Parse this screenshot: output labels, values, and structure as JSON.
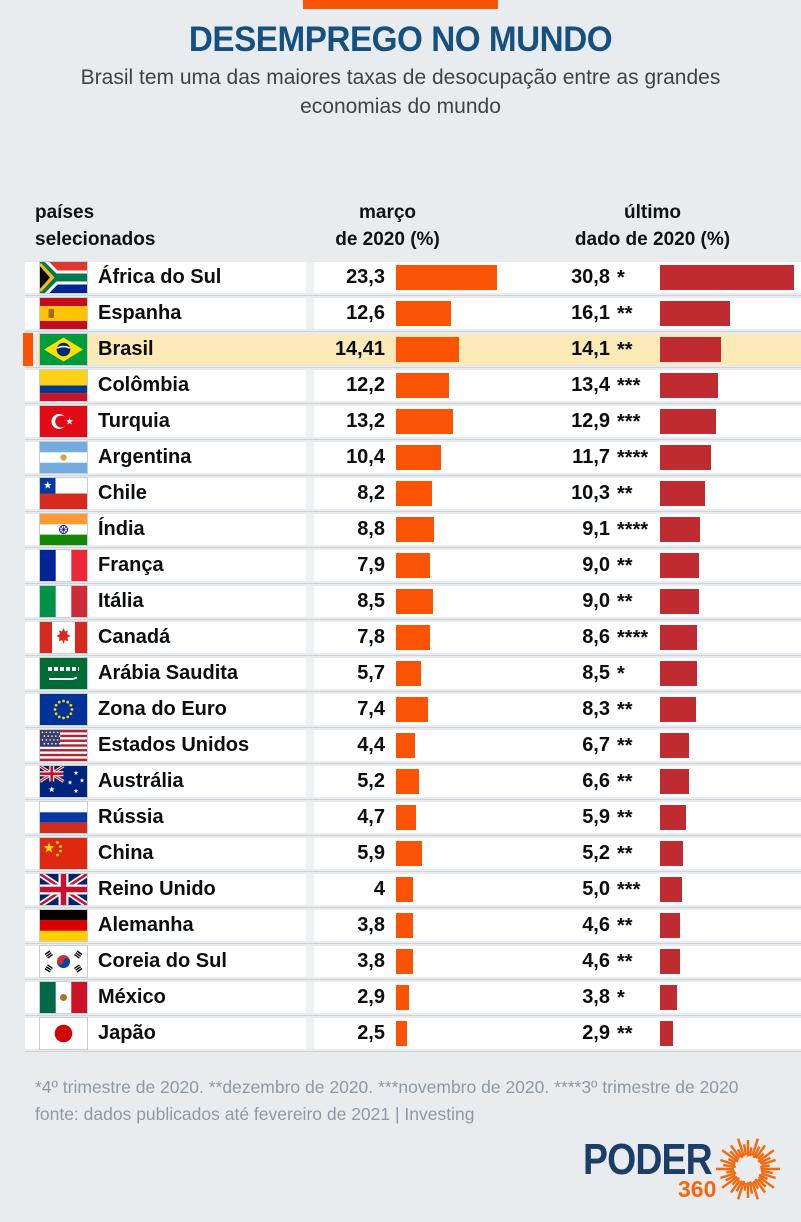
{
  "header": {
    "title": "DESEMPREGO NO MUNDO",
    "subtitle": "Brasil tem uma das maiores taxas de desocupação entre as grandes economias do mundo"
  },
  "columns": {
    "countries_l1": "países",
    "countries_l2": "selecionados",
    "march_l1": "março",
    "march_l2": "de 2020 (%)",
    "latest_l1": "último",
    "latest_l2": "dado de 2020 (%)"
  },
  "rows": [
    {
      "country": "África do Sul",
      "flag": "za",
      "marco": "23,3",
      "marco_value": 23.3,
      "ultimo": "30,8",
      "ultimo_note": "*",
      "ultimo_value": 30.8,
      "highlight": false
    },
    {
      "country": "Espanha",
      "flag": "es",
      "marco": "12,6",
      "marco_value": 12.6,
      "ultimo": "16,1",
      "ultimo_note": "**",
      "ultimo_value": 16.1,
      "highlight": false
    },
    {
      "country": "Brasil",
      "flag": "br",
      "marco": "14,41",
      "marco_value": 14.41,
      "ultimo": "14,1",
      "ultimo_note": "**",
      "ultimo_value": 14.1,
      "highlight": true
    },
    {
      "country": "Colômbia",
      "flag": "co",
      "marco": "12,2",
      "marco_value": 12.2,
      "ultimo": "13,4",
      "ultimo_note": "***",
      "ultimo_value": 13.4,
      "highlight": false
    },
    {
      "country": "Turquia",
      "flag": "tr",
      "marco": "13,2",
      "marco_value": 13.2,
      "ultimo": "12,9",
      "ultimo_note": "***",
      "ultimo_value": 12.9,
      "highlight": false
    },
    {
      "country": "Argentina",
      "flag": "ar",
      "marco": "10,4",
      "marco_value": 10.4,
      "ultimo": "11,7",
      "ultimo_note": "****",
      "ultimo_value": 11.7,
      "highlight": false
    },
    {
      "country": "Chile",
      "flag": "cl",
      "marco": "8,2",
      "marco_value": 8.2,
      "ultimo": "10,3",
      "ultimo_note": "**",
      "ultimo_value": 10.3,
      "highlight": false
    },
    {
      "country": "Índia",
      "flag": "in",
      "marco": "8,8",
      "marco_value": 8.8,
      "ultimo": "9,1",
      "ultimo_note": "****",
      "ultimo_value": 9.1,
      "highlight": false
    },
    {
      "country": "França",
      "flag": "fr",
      "marco": "7,9",
      "marco_value": 7.9,
      "ultimo": "9,0",
      "ultimo_note": "**",
      "ultimo_value": 9.0,
      "highlight": false
    },
    {
      "country": "Itália",
      "flag": "it",
      "marco": "8,5",
      "marco_value": 8.5,
      "ultimo": "9,0",
      "ultimo_note": "**",
      "ultimo_value": 9.0,
      "highlight": false
    },
    {
      "country": "Canadá",
      "flag": "ca",
      "marco": "7,8",
      "marco_value": 7.8,
      "ultimo": "8,6",
      "ultimo_note": "****",
      "ultimo_value": 8.6,
      "highlight": false
    },
    {
      "country": "Arábia Saudita",
      "flag": "sa",
      "marco": "5,7",
      "marco_value": 5.7,
      "ultimo": "8,5",
      "ultimo_note": "*",
      "ultimo_value": 8.5,
      "highlight": false
    },
    {
      "country": "Zona do Euro",
      "flag": "eu",
      "marco": "7,4",
      "marco_value": 7.4,
      "ultimo": "8,3",
      "ultimo_note": "**",
      "ultimo_value": 8.3,
      "highlight": false
    },
    {
      "country": "Estados Unidos",
      "flag": "us",
      "marco": "4,4",
      "marco_value": 4.4,
      "ultimo": "6,7",
      "ultimo_note": "**",
      "ultimo_value": 6.7,
      "highlight": false
    },
    {
      "country": "Austrália",
      "flag": "au",
      "marco": "5,2",
      "marco_value": 5.2,
      "ultimo": "6,6",
      "ultimo_note": "**",
      "ultimo_value": 6.6,
      "highlight": false
    },
    {
      "country": "Rússia",
      "flag": "ru",
      "marco": "4,7",
      "marco_value": 4.7,
      "ultimo": "5,9",
      "ultimo_note": "**",
      "ultimo_value": 5.9,
      "highlight": false
    },
    {
      "country": "China",
      "flag": "cn",
      "marco": "5,9",
      "marco_value": 5.9,
      "ultimo": "5,2",
      "ultimo_note": "**",
      "ultimo_value": 5.2,
      "highlight": false
    },
    {
      "country": "Reino Unido",
      "flag": "gb",
      "marco": "4",
      "marco_value": 4.0,
      "ultimo": "5,0",
      "ultimo_note": "***",
      "ultimo_value": 5.0,
      "highlight": false
    },
    {
      "country": "Alemanha",
      "flag": "de",
      "marco": "3,8",
      "marco_value": 3.8,
      "ultimo": "4,6",
      "ultimo_note": "**",
      "ultimo_value": 4.6,
      "highlight": false
    },
    {
      "country": "Coreia do Sul",
      "flag": "kr",
      "marco": "3,8",
      "marco_value": 3.8,
      "ultimo": "4,6",
      "ultimo_note": "**",
      "ultimo_value": 4.6,
      "highlight": false
    },
    {
      "country": "México",
      "flag": "mx",
      "marco": "2,9",
      "marco_value": 2.9,
      "ultimo": "3,8",
      "ultimo_note": "*",
      "ultimo_value": 3.8,
      "highlight": false
    },
    {
      "country": "Japão",
      "flag": "jp",
      "marco": "2,5",
      "marco_value": 2.5,
      "ultimo": "2,9",
      "ultimo_note": "**",
      "ultimo_value": 2.9,
      "highlight": false
    }
  ],
  "chart_data": {
    "type": "bar",
    "title": "DESEMPREGO NO MUNDO",
    "subtitle": "Brasil tem uma das maiores taxas de desocupação entre as grandes economias do mundo",
    "unit": "%",
    "categories": [
      "África do Sul",
      "Espanha",
      "Brasil",
      "Colômbia",
      "Turquia",
      "Argentina",
      "Chile",
      "Índia",
      "França",
      "Itália",
      "Canadá",
      "Arábia Saudita",
      "Zona do Euro",
      "Estados Unidos",
      "Austrália",
      "Rússia",
      "China",
      "Reino Unido",
      "Alemanha",
      "Coreia do Sul",
      "México",
      "Japão"
    ],
    "series": [
      {
        "name": "março de 2020 (%)",
        "color": "#fa5304",
        "values": [
          23.3,
          12.6,
          14.41,
          12.2,
          13.2,
          10.4,
          8.2,
          8.8,
          7.9,
          8.5,
          7.8,
          5.7,
          7.4,
          4.4,
          5.2,
          4.7,
          5.9,
          4,
          3.8,
          3.8,
          2.9,
          2.5
        ]
      },
      {
        "name": "último dado de 2020 (%)",
        "color": "#bf2b31",
        "values": [
          30.8,
          16.1,
          14.1,
          13.4,
          12.9,
          11.7,
          10.3,
          9.1,
          9.0,
          9.0,
          8.6,
          8.5,
          8.3,
          6.7,
          6.6,
          5.9,
          5.2,
          5.0,
          4.6,
          4.6,
          3.8,
          2.9
        ],
        "notes": [
          "*",
          "**",
          "**",
          "***",
          "***",
          "****",
          "**",
          "****",
          "**",
          "**",
          "****",
          "*",
          "**",
          "**",
          "**",
          "**",
          "**",
          "***",
          "**",
          "**",
          "*",
          "**"
        ]
      }
    ],
    "highlighted_category": "Brasil",
    "legend_position": "none",
    "grid": false
  },
  "footnotes": {
    "asterisks": "*4º trimestre de 2020. **dezembro de 2020. ***novembro de 2020. ****3º trimestre de 2020",
    "source": "fonte: dados publicados até fevereiro de 2021 | Investing"
  },
  "logo": {
    "brand": "PODER",
    "suffix": "360"
  },
  "colors": {
    "accent_orange": "#fa5304",
    "bar_red": "#bf2b31",
    "title_navy": "#15507f",
    "highlight_bg": "#fbe9b8",
    "page_bg": "#e9ecef",
    "footnote_gray": "#8d99a4"
  }
}
